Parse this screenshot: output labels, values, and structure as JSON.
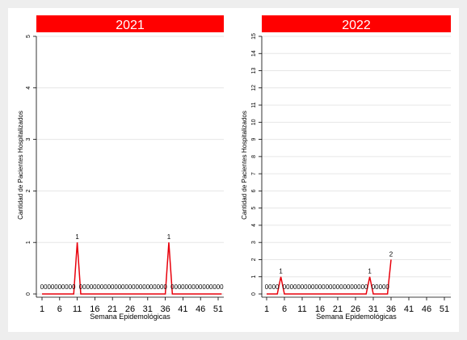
{
  "chart_data": [
    {
      "type": "line",
      "title": "2021",
      "xlabel": "Semana Epidemológicas",
      "ylabel": "Cantidad de Pacientes Hospitalizados",
      "xlim": [
        1,
        53
      ],
      "ylim": [
        0,
        5
      ],
      "xticks": [
        1,
        6,
        11,
        16,
        21,
        26,
        31,
        36,
        41,
        46,
        51
      ],
      "yticks": [
        0,
        1,
        2,
        3,
        4,
        5
      ],
      "grid": true,
      "line_color": "#e8000b",
      "x": [
        1,
        2,
        3,
        4,
        5,
        6,
        7,
        8,
        9,
        10,
        11,
        12,
        13,
        14,
        15,
        16,
        17,
        18,
        19,
        20,
        21,
        22,
        23,
        24,
        25,
        26,
        27,
        28,
        29,
        30,
        31,
        32,
        33,
        34,
        35,
        36,
        37,
        38,
        39,
        40,
        41,
        42,
        43,
        44,
        45,
        46,
        47,
        48,
        49,
        50,
        51,
        52
      ],
      "values": [
        0,
        0,
        0,
        0,
        0,
        0,
        0,
        0,
        0,
        0,
        1,
        0,
        0,
        0,
        0,
        0,
        0,
        0,
        0,
        0,
        0,
        0,
        0,
        0,
        0,
        0,
        0,
        0,
        0,
        0,
        0,
        0,
        0,
        0,
        0,
        0,
        1,
        0,
        0,
        0,
        0,
        0,
        0,
        0,
        0,
        0,
        0,
        0,
        0,
        0,
        0,
        0
      ]
    },
    {
      "type": "line",
      "title": "2022",
      "xlabel": "Semana Epidemológicas",
      "ylabel": "Cantidad de Pacientes Hospitalizados",
      "xlim": [
        1,
        53
      ],
      "ylim": [
        0,
        15
      ],
      "xticks": [
        1,
        6,
        11,
        16,
        21,
        26,
        31,
        36,
        41,
        46,
        51
      ],
      "yticks": [
        0,
        1,
        2,
        3,
        4,
        5,
        6,
        7,
        8,
        9,
        10,
        11,
        12,
        13,
        14,
        15
      ],
      "grid": true,
      "line_color": "#e8000b",
      "x": [
        1,
        2,
        3,
        4,
        5,
        6,
        7,
        8,
        9,
        10,
        11,
        12,
        13,
        14,
        15,
        16,
        17,
        18,
        19,
        20,
        21,
        22,
        23,
        24,
        25,
        26,
        27,
        28,
        29,
        30,
        31,
        32,
        33,
        34,
        35,
        36
      ],
      "values": [
        0,
        0,
        0,
        0,
        1,
        0,
        0,
        0,
        0,
        0,
        0,
        0,
        0,
        0,
        0,
        0,
        0,
        0,
        0,
        0,
        0,
        0,
        0,
        0,
        0,
        0,
        0,
        0,
        0,
        1,
        0,
        0,
        0,
        0,
        0,
        2
      ]
    }
  ],
  "colors": {
    "title_band": "#ff0000",
    "line": "#e8000b",
    "panel": "#ffffff",
    "background": "#eeeeee",
    "grid": "#e6e6e6"
  }
}
